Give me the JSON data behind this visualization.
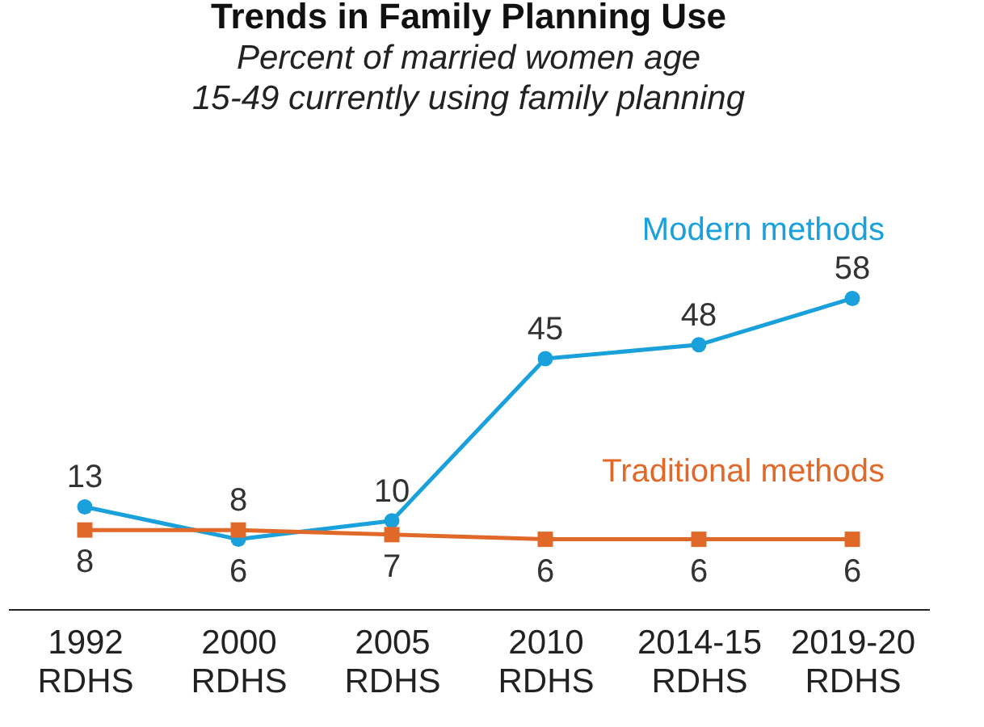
{
  "chart_data": {
    "type": "line",
    "title": "Trends in Family Planning Use",
    "subtitle": "Percent of married women age 15-49 currently using family planning",
    "categories": [
      "1992 RDHS",
      "2000 RDHS",
      "2005 RDHS",
      "2010 RDHS",
      "2014-15 RDHS",
      "2019-20 RDHS"
    ],
    "series": [
      {
        "name": "Modern methods",
        "color": "#1aa0db",
        "marker": "circle",
        "values": [
          13,
          6,
          10,
          45,
          48,
          58
        ]
      },
      {
        "name": "Traditional methods",
        "color": "#e0692a",
        "marker": "square",
        "values": [
          8,
          8,
          7,
          6,
          6,
          6
        ]
      }
    ],
    "data_labels": true,
    "grid": false,
    "legend": false,
    "line_style": "solid"
  }
}
